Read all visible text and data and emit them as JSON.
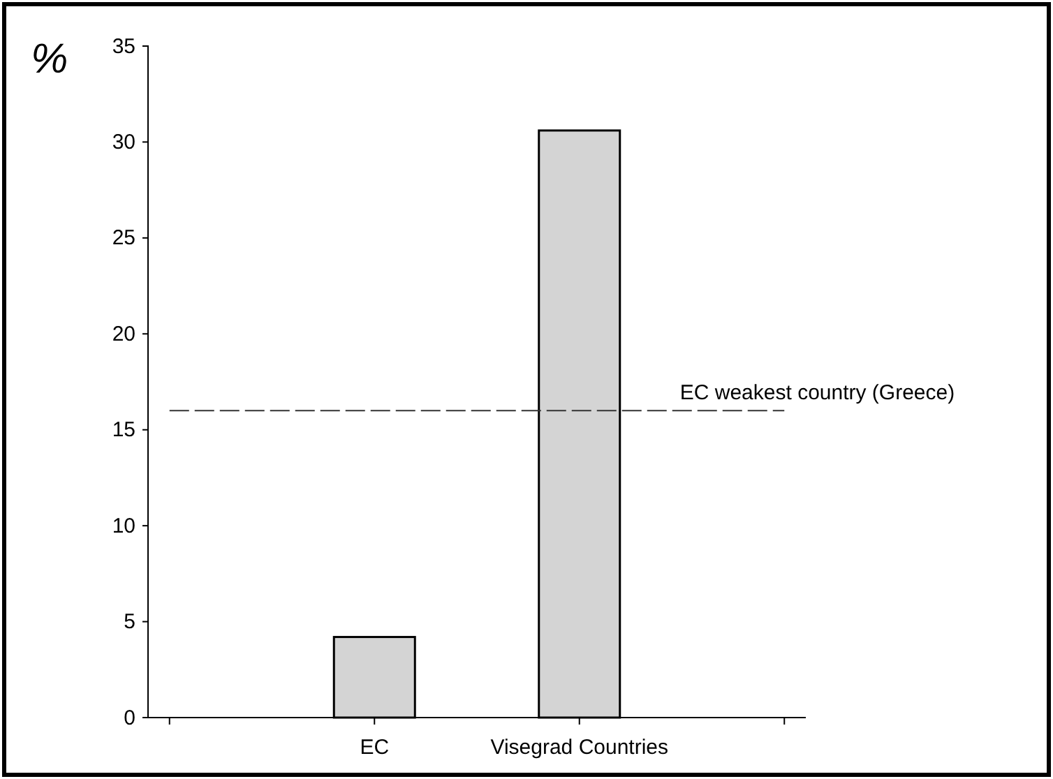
{
  "chart_data": {
    "type": "bar",
    "ylabel": "%",
    "categories": [
      null,
      "EC",
      "Visegrad Countries",
      null
    ],
    "values": [
      null,
      4.2,
      30.6,
      null
    ],
    "color": "#d4d4d4",
    "ylim": [
      0,
      35
    ],
    "yticks": [
      0,
      5,
      10,
      15,
      20,
      25,
      30,
      35
    ],
    "grid": false,
    "ref_lines": [
      {
        "axis": "y",
        "value": 16,
        "label": "EC weakest country (Greece)",
        "color": "#333333",
        "line_style": "dashed"
      }
    ]
  }
}
